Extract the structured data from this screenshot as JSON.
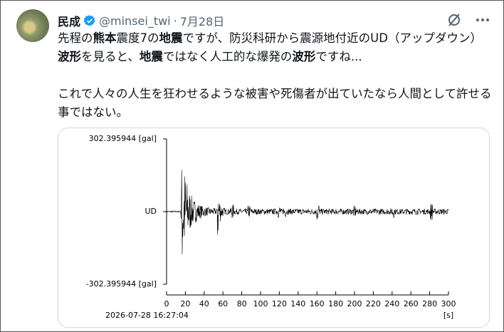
{
  "post": {
    "display_name": "民成",
    "handle": "@minsei_twi",
    "separator": "·",
    "date": "7月28日",
    "paragraphs": [
      [
        {
          "text": "先程の"
        },
        {
          "text": "熊本",
          "bold": true
        },
        {
          "text": "震度7の"
        },
        {
          "text": "地震",
          "bold": true
        },
        {
          "text": "ですが、防災科研から震源地付近のUD（アップダウン）"
        },
        {
          "text": "波形",
          "bold": true
        },
        {
          "text": "を見ると、"
        },
        {
          "text": "地震",
          "bold": true
        },
        {
          "text": "ではなく人工的な爆発の"
        },
        {
          "text": "波形",
          "bold": true
        },
        {
          "text": "ですね..."
        }
      ],
      [
        {
          "text": "これで人々の人生を狂わせるような被害や死傷者が出ていたなら人間として許せる事ではない。"
        }
      ]
    ]
  },
  "chart_data": {
    "type": "seismogram",
    "ylim": [
      -302.395944,
      302.395944
    ],
    "yticks": [
      {
        "value": -302.395944,
        "label": "-302.395944 [gal]"
      },
      {
        "value": 0,
        "label": "UD"
      },
      {
        "value": 302.395944,
        "label": "302.395944 [gal]"
      }
    ],
    "xlim": [
      0,
      300
    ],
    "xticks": [
      0,
      20,
      40,
      60,
      80,
      100,
      120,
      140,
      160,
      180,
      200,
      220,
      240,
      260,
      280,
      300
    ],
    "x_unit": "[s]",
    "timestamp": "2026-07-28 16:27:04",
    "color": "#000000"
  }
}
